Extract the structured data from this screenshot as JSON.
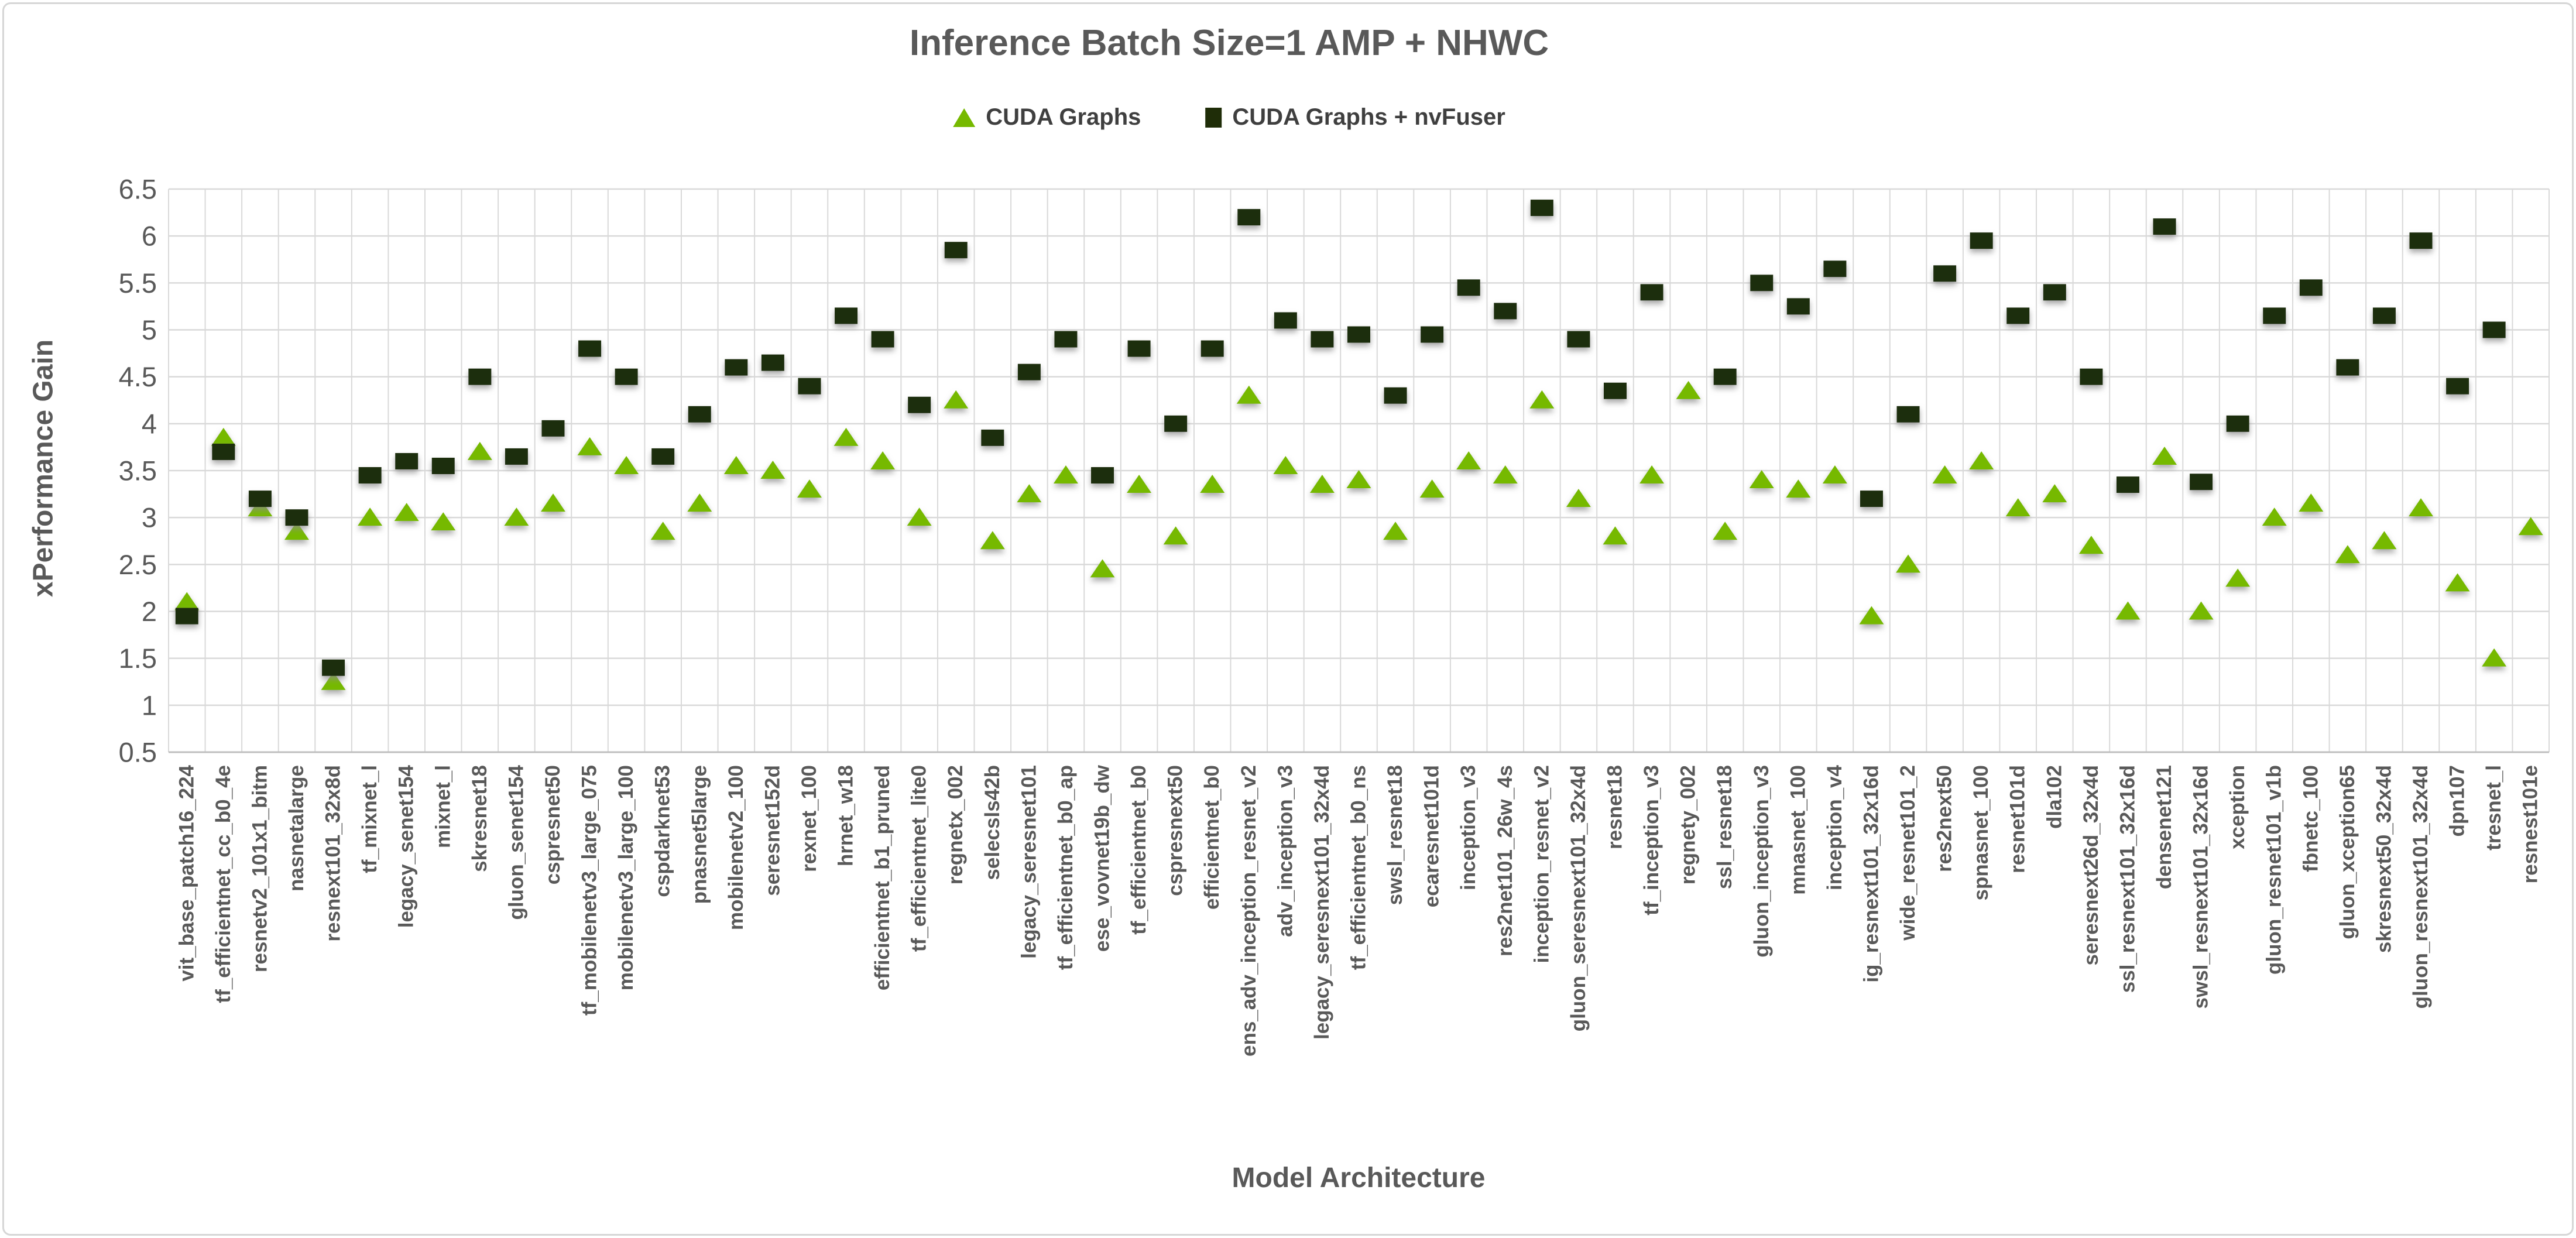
{
  "title": "Inference Batch Size=1 AMP + NHWC",
  "legend": {
    "items": [
      {
        "label": "CUDA Graphs",
        "marker": "triangle",
        "color": "#76b900"
      },
      {
        "label": "CUDA Graphs + nvFuser",
        "marker": "square",
        "color": "#1f2d08"
      }
    ]
  },
  "axes": {
    "x_title": "Model Architecture",
    "y_title": "xPerformance Gain"
  },
  "chart_data": {
    "type": "scatter",
    "title": "Inference Batch Size=1 AMP + NHWC",
    "xlabel": "Model Architecture",
    "ylabel": "xPerformance Gain",
    "ylim": [
      0.5,
      6.5
    ],
    "ytick_step": 0.5,
    "grid": true,
    "legend_position": "top",
    "categories": [
      "vit_base_patch16_224",
      "tf_efficientnet_cc_b0_4e",
      "resnetv2_101x1_bitm",
      "nasnetalarge",
      "resnext101_32x8d",
      "tf_mixnet_l",
      "legacy_senet154",
      "mixnet_l",
      "skresnet18",
      "gluon_senet154",
      "cspresnet50",
      "tf_mobilenetv3_large_075",
      "mobilenetv3_large_100",
      "cspdarknet53",
      "pnasnet5large",
      "mobilenetv2_100",
      "seresnet152d",
      "rexnet_100",
      "hrnet_w18",
      "efficientnet_b1_pruned",
      "tf_efficientnet_lite0",
      "regnetx_002",
      "selecsls42b",
      "legacy_seresnet101",
      "tf_efficientnet_b0_ap",
      "ese_vovnet19b_dw",
      "tf_efficientnet_b0",
      "cspresnext50",
      "efficientnet_b0",
      "ens_adv_inception_resnet_v2",
      "adv_inception_v3",
      "legacy_seresnext101_32x4d",
      "tf_efficientnet_b0_ns",
      "swsl_resnet18",
      "ecaresnet101d",
      "inception_v3",
      "res2net101_26w_4s",
      "inception_resnet_v2",
      "gluon_seresnext101_32x4d",
      "resnet18",
      "tf_inception_v3",
      "regnety_002",
      "ssl_resnet18",
      "gluon_inception_v3",
      "mnasnet_100",
      "inception_v4",
      "ig_resnext101_32x16d",
      "wide_resnet101_2",
      "res2next50",
      "spnasnet_100",
      "resnet101d",
      "dla102",
      "seresnext26d_32x4d",
      "ssl_resnext101_32x16d",
      "densenet121",
      "swsl_resnext101_32x16d",
      "xception",
      "gluon_resnet101_v1b",
      "fbnetc_100",
      "gluon_xception65",
      "skresnext50_32x4d",
      "gluon_resnext101_32x4d",
      "dpn107",
      "tresnet_l",
      "resnest101e"
    ],
    "series": [
      {
        "name": "CUDA Graphs",
        "marker": "triangle",
        "color": "#76b900",
        "values": [
          2.1,
          3.85,
          3.1,
          2.85,
          1.25,
          3.0,
          3.05,
          2.95,
          3.7,
          3.0,
          3.15,
          3.75,
          3.55,
          2.85,
          3.15,
          3.55,
          3.5,
          3.3,
          3.85,
          3.6,
          3.0,
          4.25,
          2.75,
          3.25,
          3.45,
          2.45,
          3.35,
          2.8,
          3.35,
          4.3,
          3.55,
          3.35,
          3.4,
          2.85,
          3.3,
          3.6,
          3.45,
          4.25,
          3.2,
          2.8,
          3.45,
          4.35,
          2.85,
          3.4,
          3.3,
          3.45,
          1.95,
          2.5,
          3.45,
          3.6,
          3.1,
          3.25,
          2.7,
          2.0,
          3.65,
          2.0,
          2.35,
          3.0,
          3.15,
          2.6,
          2.75,
          3.1,
          2.3,
          1.5,
          2.9
        ]
      },
      {
        "name": "CUDA Graphs + nvFuser",
        "marker": "square",
        "color": "#1f2d08",
        "values": [
          1.95,
          3.7,
          3.2,
          3.0,
          1.4,
          3.45,
          3.6,
          3.55,
          4.5,
          3.65,
          3.95,
          4.8,
          4.5,
          3.65,
          4.1,
          4.6,
          4.65,
          4.4,
          5.15,
          4.9,
          4.2,
          5.85,
          3.85,
          4.55,
          4.9,
          3.45,
          4.8,
          4.0,
          4.8,
          6.2,
          5.1,
          4.9,
          4.95,
          4.3,
          4.95,
          5.45,
          5.2,
          6.3,
          4.9,
          4.35,
          5.4,
          null,
          4.5,
          5.5,
          5.25,
          5.65,
          3.2,
          4.1,
          5.6,
          5.95,
          5.15,
          5.4,
          4.5,
          3.35,
          6.1,
          3.38,
          4.0,
          5.15,
          5.45,
          4.6,
          5.15,
          5.95,
          4.4,
          5.0,
          null
        ]
      }
    ]
  }
}
